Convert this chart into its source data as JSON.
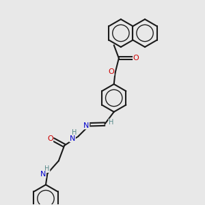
{
  "bg_color": "#e8e8e8",
  "bond_color": "#1a1a1a",
  "atom_colors": {
    "O": "#cc0000",
    "N": "#0000cc",
    "H": "#558888",
    "C": "#1a1a1a"
  },
  "line_width": 1.5,
  "figsize": [
    3.0,
    3.0
  ],
  "dpi": 100
}
